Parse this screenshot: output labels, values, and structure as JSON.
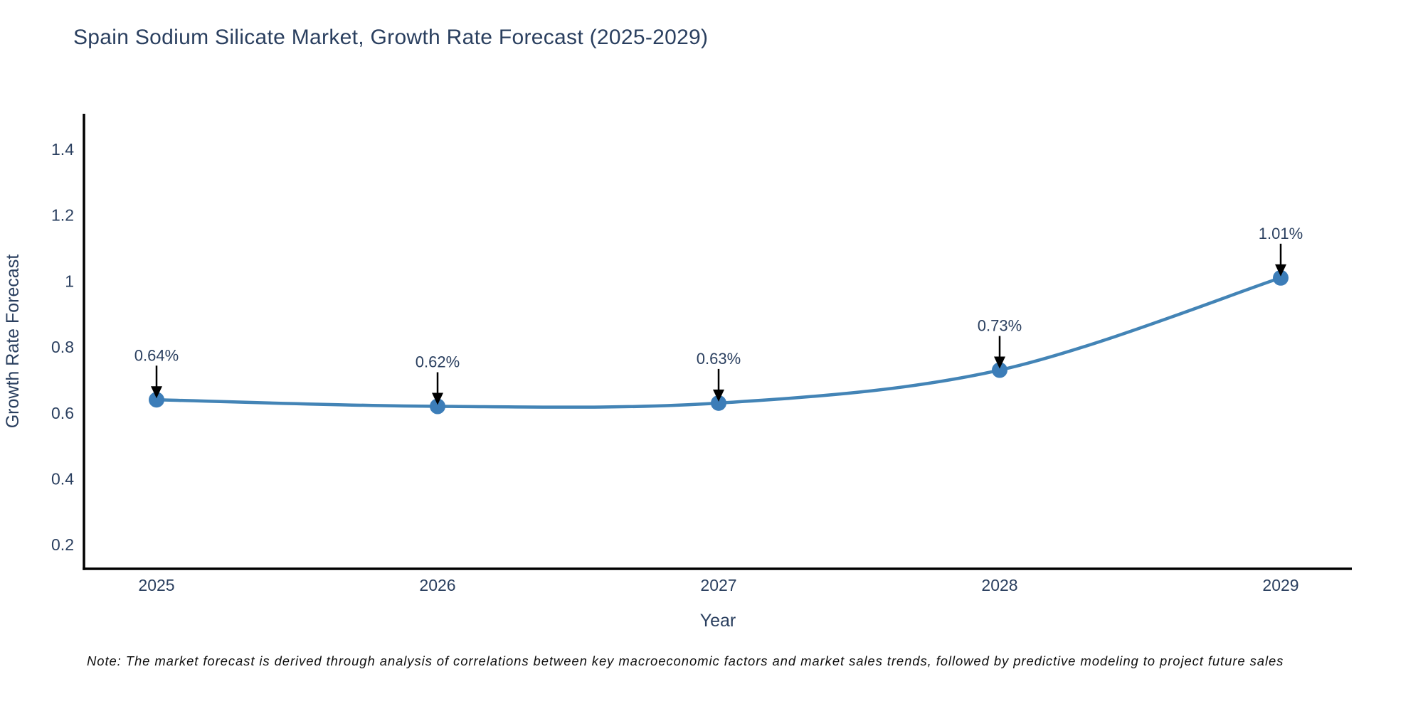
{
  "title": "Spain Sodium Silicate Market, Growth Rate Forecast (2025-2029)",
  "note": "Note: The market forecast is derived through analysis of correlations between key macroeconomic factors and market sales trends, followed by predictive modeling to project future sales",
  "chart_data": {
    "type": "line",
    "title": "Spain Sodium Silicate Market, Growth Rate Forecast (2025-2029)",
    "xlabel": "Year",
    "ylabel": "Growth Rate Forecast",
    "categories": [
      "2025",
      "2026",
      "2027",
      "2028",
      "2029"
    ],
    "values": [
      0.64,
      0.62,
      0.63,
      0.73,
      1.01
    ],
    "point_labels": [
      "0.64%",
      "0.62%",
      "0.63%",
      "0.73%",
      "1.01%"
    ],
    "yticks": [
      0.2,
      0.4,
      0.6,
      0.8,
      1,
      1.2,
      1.4
    ],
    "ytick_labels": [
      "0.2",
      "0.4",
      "0.6",
      "0.8",
      "1",
      "1.2",
      "1.4"
    ],
    "ylim": [
      0.127,
      1.508
    ],
    "grid": false,
    "legend": "none",
    "line_shape": "spline",
    "colors": {
      "line": "#4384b6",
      "marker": "#3c7db8",
      "axis": "#000000",
      "text": "#2a3f5f",
      "annotation_arrow": "#000000",
      "annotation_text": "#2a3f5f"
    }
  }
}
